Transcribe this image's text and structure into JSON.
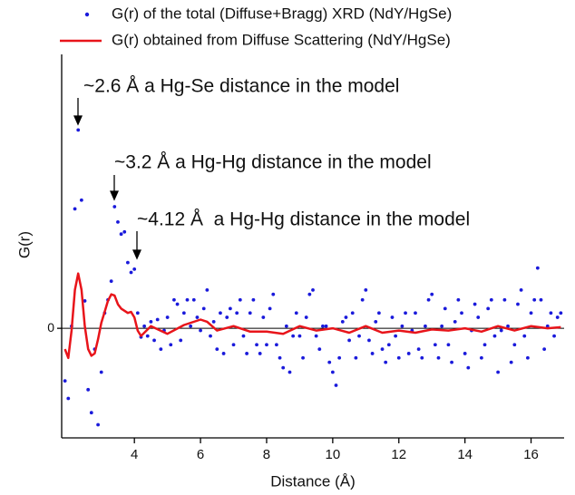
{
  "chart_data": {
    "type": "line",
    "x_label": "Distance (Å)",
    "y_label": "G(r)",
    "xlim": [
      1.8,
      17
    ],
    "xticks": [
      4,
      6,
      8,
      10,
      12,
      14,
      16
    ],
    "ylim": [
      -1,
      2.5
    ],
    "yticks": [
      0
    ],
    "grid": true,
    "annotations": [
      "~2.6 Å a Hg-Se distance in the model",
      "~3.2 Å a Hg-Hg distance in the model",
      "~4.12 Å  a Hg-Hg distance in the model"
    ],
    "series": [
      {
        "name": "G(r) of the total (Diffuse+Bragg) XRD (NdY/HgSe)",
        "color": "#1a1adb",
        "style": "dots",
        "x": [
          1.9,
          2.0,
          2.1,
          2.2,
          2.3,
          2.4,
          2.5,
          2.6,
          2.7,
          2.8,
          2.9,
          3.0,
          3.1,
          3.2,
          3.3,
          3.4,
          3.5,
          3.6,
          3.7,
          3.8,
          3.9,
          4.0,
          4.1,
          4.2,
          4.3,
          4.4,
          4.5,
          4.6,
          4.7,
          4.8,
          4.9,
          5.0,
          5.1,
          5.2,
          5.3,
          5.4,
          5.5,
          5.6,
          5.7,
          5.8,
          5.9,
          6.0,
          6.1,
          6.2,
          6.3,
          6.4,
          6.5,
          6.6,
          6.7,
          6.8,
          6.9,
          7.0,
          7.1,
          7.2,
          7.3,
          7.4,
          7.5,
          7.6,
          7.7,
          7.8,
          7.9,
          8.0,
          8.1,
          8.2,
          8.3,
          8.4,
          8.5,
          8.6,
          8.7,
          8.8,
          8.9,
          9.0,
          9.1,
          9.2,
          9.3,
          9.4,
          9.5,
          9.6,
          9.7,
          9.8,
          9.9,
          10.0,
          10.1,
          10.2,
          10.3,
          10.4,
          10.5,
          10.6,
          10.7,
          10.8,
          10.9,
          11.0,
          11.1,
          11.2,
          11.3,
          11.4,
          11.5,
          11.6,
          11.7,
          11.8,
          11.9,
          12.0,
          12.1,
          12.2,
          12.3,
          12.4,
          12.5,
          12.6,
          12.7,
          12.8,
          12.9,
          13.0,
          13.1,
          13.2,
          13.3,
          13.4,
          13.5,
          13.6,
          13.7,
          13.8,
          13.9,
          14.0,
          14.1,
          14.2,
          14.3,
          14.4,
          14.5,
          14.6,
          14.7,
          14.8,
          14.9,
          15.0,
          15.1,
          15.2,
          15.3,
          15.4,
          15.5,
          15.6,
          15.7,
          15.8,
          15.9,
          16.0,
          16.1,
          16.2,
          16.3,
          16.4,
          16.5,
          16.6,
          16.7,
          16.8,
          16.9
        ],
        "values": [
          -0.48,
          -0.64,
          0.02,
          1.09,
          1.81,
          1.17,
          0.25,
          -0.56,
          -0.77,
          -0.19,
          -0.88,
          -0.4,
          0.14,
          0.26,
          0.43,
          1.11,
          0.97,
          0.86,
          0.88,
          0.6,
          0.51,
          0.54,
          0.14,
          -0.08,
          0.02,
          -0.07,
          0.06,
          -0.11,
          0.08,
          -0.19,
          -0.02,
          0.1,
          -0.15,
          0.26,
          0.22,
          -0.11,
          0.14,
          0.26,
          0.02,
          0.26,
          0.1,
          -0.02,
          0.18,
          0.35,
          -0.07,
          0.06,
          -0.19,
          0.14,
          -0.23,
          0.1,
          0.18,
          -0.15,
          0.14,
          0.26,
          -0.07,
          -0.23,
          0.14,
          0.26,
          -0.15,
          -0.23,
          0.1,
          -0.15,
          0.18,
          0.31,
          -0.15,
          -0.27,
          -0.36,
          0.02,
          -0.4,
          -0.07,
          0.14,
          -0.07,
          -0.27,
          0.1,
          0.31,
          0.35,
          -0.07,
          -0.19,
          0.02,
          0.02,
          -0.31,
          -0.4,
          -0.52,
          -0.27,
          0.06,
          0.1,
          -0.11,
          0.14,
          -0.27,
          -0.07,
          0.26,
          0.35,
          -0.11,
          -0.23,
          0.06,
          0.14,
          -0.19,
          -0.31,
          -0.15,
          0.1,
          -0.07,
          -0.27,
          0.02,
          0.14,
          -0.23,
          -0.02,
          0.14,
          -0.19,
          -0.27,
          0.02,
          0.26,
          0.31,
          -0.15,
          -0.27,
          0.02,
          0.18,
          -0.15,
          -0.31,
          0.06,
          0.26,
          0.14,
          -0.23,
          -0.36,
          -0.02,
          0.22,
          0.1,
          -0.27,
          -0.15,
          0.18,
          0.26,
          -0.07,
          -0.4,
          -0.02,
          0.26,
          0.02,
          -0.31,
          -0.15,
          0.22,
          0.35,
          -0.07,
          -0.27,
          0.14,
          0.26,
          0.55,
          0.26,
          -0.19,
          0.02,
          0.14,
          -0.07,
          0.1,
          0.14
        ]
      },
      {
        "name": "G(r) obtained from Diffuse Scattering (NdY/HgSe)",
        "color": "#e8141a",
        "style": "line",
        "x": [
          1.9,
          2.0,
          2.1,
          2.2,
          2.3,
          2.4,
          2.5,
          2.6,
          2.7,
          2.8,
          2.9,
          3.0,
          3.1,
          3.2,
          3.3,
          3.4,
          3.5,
          3.6,
          3.7,
          3.8,
          3.9,
          4.0,
          4.1,
          4.2,
          4.3,
          4.5,
          5.0,
          5.5,
          6.0,
          6.2,
          6.5,
          7.0,
          7.5,
          8.0,
          8.5,
          9.0,
          9.5,
          10.0,
          10.5,
          11.0,
          11.5,
          12.0,
          12.5,
          13.0,
          13.5,
          14.0,
          14.5,
          15.0,
          15.5,
          16.0,
          16.5,
          16.9
        ],
        "values": [
          -0.19,
          -0.27,
          -0.02,
          0.35,
          0.5,
          0.35,
          0.02,
          -0.19,
          -0.25,
          -0.23,
          -0.1,
          0.05,
          0.15,
          0.25,
          0.31,
          0.3,
          0.22,
          0.18,
          0.16,
          0.14,
          0.15,
          0.1,
          -0.02,
          -0.07,
          -0.04,
          0.02,
          -0.05,
          0.03,
          0.08,
          0.06,
          -0.02,
          0.02,
          -0.03,
          -0.03,
          -0.05,
          0.02,
          -0.02,
          0,
          -0.04,
          0.02,
          -0.04,
          -0.02,
          -0.04,
          -0.01,
          -0.02,
          0,
          -0.03,
          0.02,
          -0.02,
          0.02,
          0,
          0.01
        ]
      }
    ]
  }
}
